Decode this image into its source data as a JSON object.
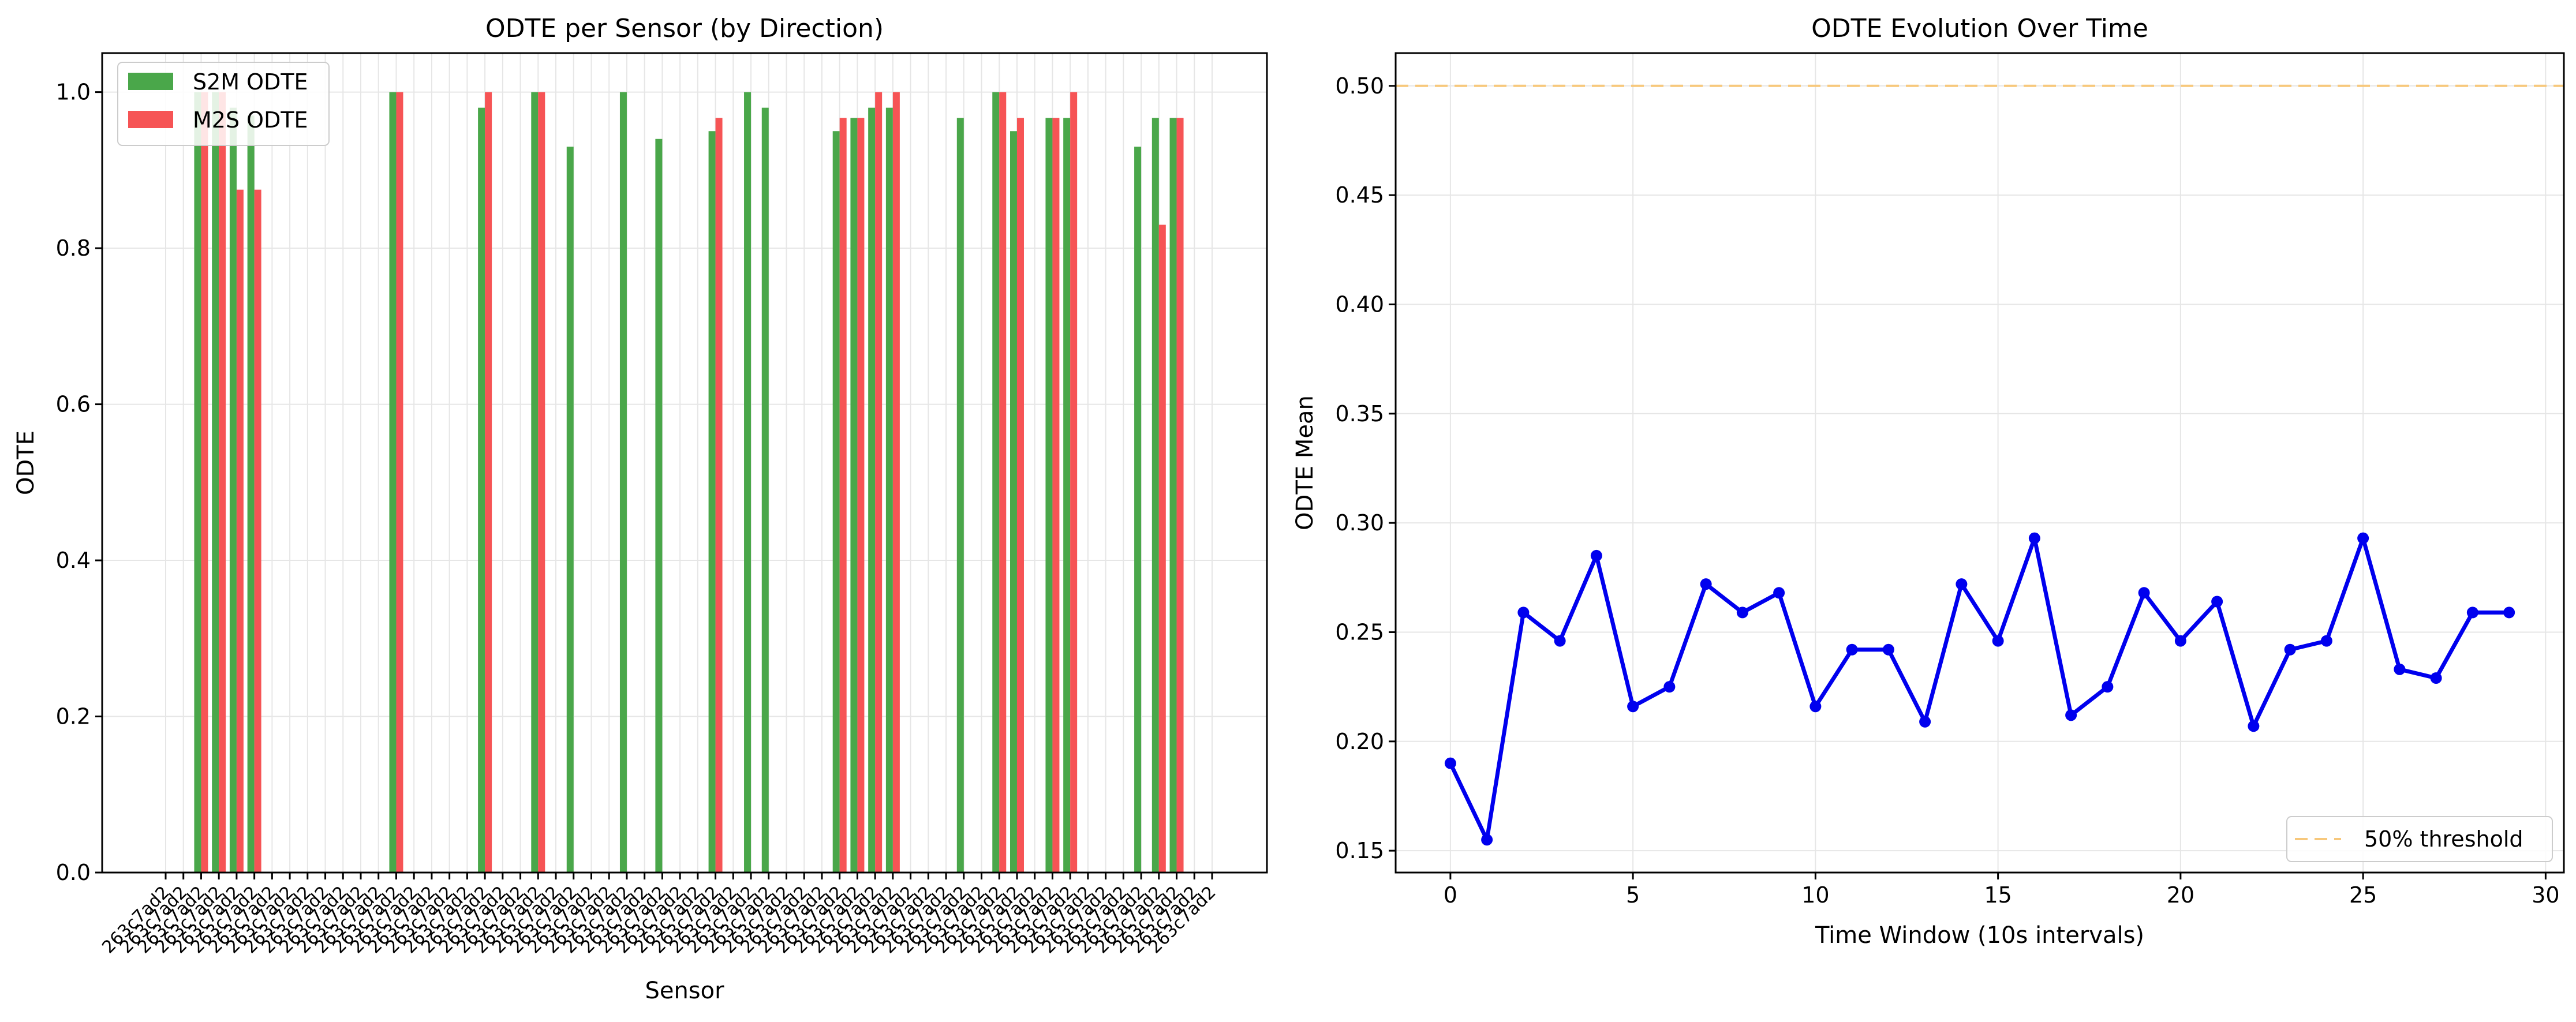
{
  "chart_data": [
    {
      "type": "bar",
      "title": "ODTE per Sensor (by Direction)",
      "xlabel": "Sensor",
      "ylabel": "ODTE",
      "ylim": [
        0,
        1.05
      ],
      "yticks": [
        "0.0",
        "0.2",
        "0.4",
        "0.6",
        "0.8",
        "1.0"
      ],
      "grid": true,
      "legend_position": "top-left",
      "categories": [
        "263c7ad2",
        "263c7ad2",
        "263c7ad2",
        "263c7ad2",
        "263c7ad2",
        "263c7ad2",
        "263c7ad2",
        "263c7ad2",
        "263c7ad2",
        "263c7ad2",
        "263c7ad2",
        "263c7ad2",
        "263c7ad2",
        "263c7ad2",
        "263c7ad2",
        "263c7ad2",
        "263c7ad2",
        "263c7ad2",
        "263c7ad2",
        "263c7ad2",
        "263c7ad2",
        "263c7ad2",
        "263c7ad2",
        "263c7ad2",
        "263c7ad2",
        "263c7ad2",
        "263c7ad2",
        "263c7ad2",
        "263c7ad2",
        "263c7ad2",
        "263c7ad2",
        "263c7ad2",
        "263c7ad2",
        "263c7ad2",
        "263c7ad2",
        "263c7ad2",
        "263c7ad2",
        "263c7ad2",
        "263c7ad2",
        "263c7ad2",
        "263c7ad2",
        "263c7ad2",
        "263c7ad2",
        "263c7ad2",
        "263c7ad2",
        "263c7ad2",
        "263c7ad2",
        "263c7ad2",
        "263c7ad2",
        "263c7ad2",
        "263c7ad2",
        "263c7ad2",
        "263c7ad2",
        "263c7ad2",
        "263c7ad2",
        "263c7ad2",
        "263c7ad2",
        "263c7ad2",
        "263c7ad2",
        "263c7ad2"
      ],
      "series": [
        {
          "name": "S2M ODTE",
          "color": "#4aa74a",
          "values": [
            0,
            0,
            1.0,
            1.0,
            0.98,
            0.97,
            0,
            0,
            0,
            0,
            0,
            0,
            0,
            1.0,
            0,
            0,
            0,
            0,
            0.98,
            0,
            0,
            1.0,
            0,
            0.93,
            0,
            0,
            1.0,
            0,
            0.94,
            0,
            0,
            0.95,
            0,
            1.0,
            0.98,
            0,
            0,
            0,
            0.95,
            0.967,
            0.98,
            0.98,
            0,
            0,
            0,
            0.967,
            0,
            1.0,
            0.95,
            0,
            0.967,
            0.967,
            0,
            0,
            0,
            0.93,
            0.967,
            0.967,
            0,
            0
          ]
        },
        {
          "name": "M2S ODTE",
          "color": "#f65455",
          "values": [
            0,
            0,
            1.0,
            1.0,
            0.875,
            0.875,
            0,
            0,
            0,
            0,
            0,
            0,
            0,
            1.0,
            0,
            0,
            0,
            0,
            1.0,
            0,
            0,
            1.0,
            0,
            0,
            0,
            0,
            0,
            0,
            0,
            0,
            0,
            0.967,
            0,
            0,
            0,
            0,
            0,
            0,
            0.967,
            0.967,
            1.0,
            1.0,
            0,
            0,
            0,
            0,
            0,
            1.0,
            0.967,
            0,
            0.967,
            1.0,
            0,
            0,
            0,
            0,
            0.83,
            0.967,
            0,
            0
          ]
        }
      ]
    },
    {
      "type": "line",
      "title": "ODTE Evolution Over Time",
      "xlabel": "Time Window (10s intervals)",
      "ylabel": "ODTE Mean",
      "xlim": [
        -1.5,
        30.5
      ],
      "ylim": [
        0.14,
        0.515
      ],
      "xticks": [
        "0",
        "5",
        "10",
        "15",
        "20",
        "25",
        "30"
      ],
      "yticks": [
        "0.15",
        "0.20",
        "0.25",
        "0.30",
        "0.35",
        "0.40",
        "0.45",
        "0.50"
      ],
      "grid": true,
      "legend_position": "bottom-right",
      "x": [
        0,
        1,
        2,
        3,
        4,
        5,
        6,
        7,
        8,
        9,
        10,
        11,
        12,
        13,
        14,
        15,
        16,
        17,
        18,
        19,
        20,
        21,
        22,
        23,
        24,
        25,
        26,
        27,
        28,
        29
      ],
      "series": [
        {
          "color": "#0000ee",
          "values": [
            0.19,
            0.155,
            0.259,
            0.246,
            0.285,
            0.216,
            0.225,
            0.272,
            0.259,
            0.268,
            0.216,
            0.242,
            0.242,
            0.209,
            0.272,
            0.246,
            0.293,
            0.212,
            0.225,
            0.268,
            0.246,
            0.264,
            0.207,
            0.242,
            0.246,
            0.293,
            0.233,
            0.229,
            0.259,
            0.259
          ]
        }
      ],
      "threshold": {
        "value": 0.5,
        "label": "50% threshold",
        "color": "#f7c87c"
      }
    }
  ]
}
